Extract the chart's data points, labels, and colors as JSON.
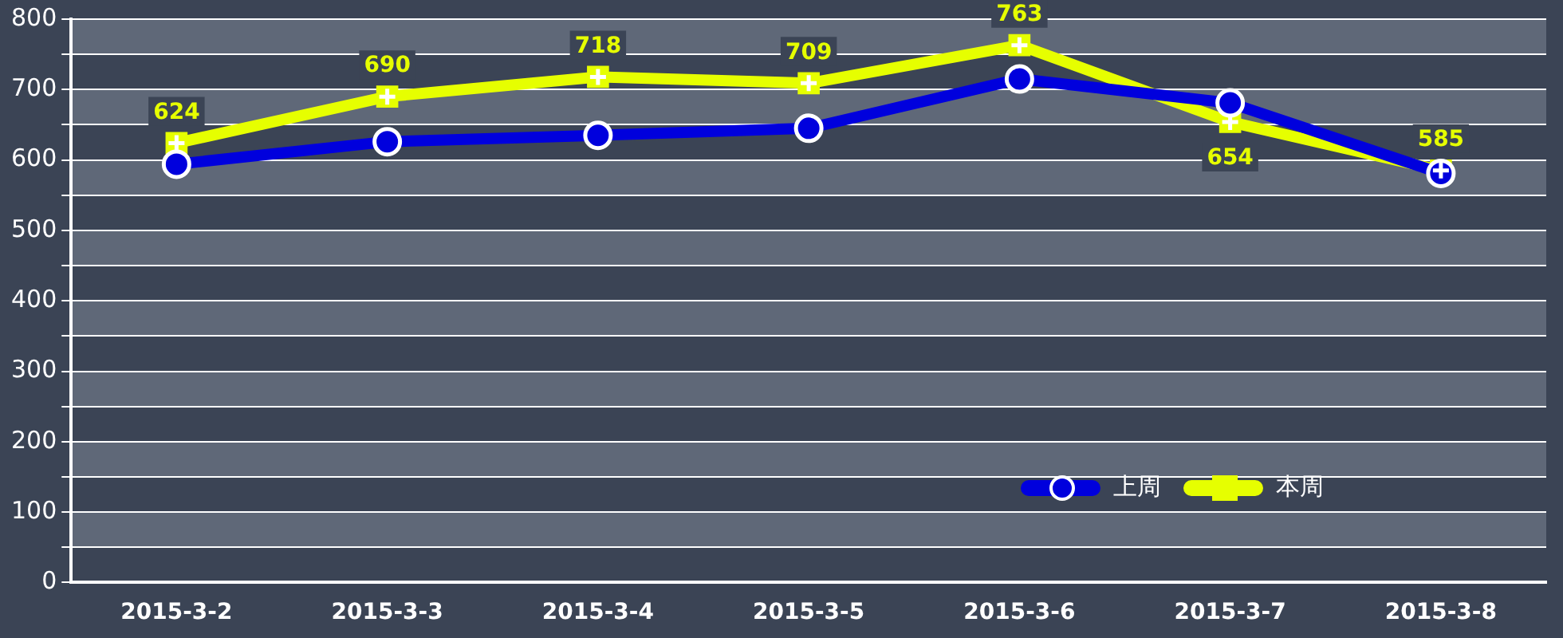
{
  "chart_data": {
    "type": "line",
    "categories": [
      "2015-3-2",
      "2015-3-3",
      "2015-3-4",
      "2015-3-5",
      "2015-3-6",
      "2015-3-7",
      "2015-3-8"
    ],
    "series": [
      {
        "name": "上周",
        "color": "#0000dd",
        "marker": "circle",
        "values": [
          594,
          626,
          635,
          645,
          715,
          681,
          581
        ]
      },
      {
        "name": "本周",
        "color": "#e6ff00",
        "marker": "square",
        "data_labels": true,
        "values": [
          624,
          690,
          718,
          709,
          763,
          654,
          585
        ]
      }
    ],
    "ylim": [
      0,
      800
    ],
    "yticks": [
      0,
      {
        "value": 50,
        "label": null
      },
      100,
      {
        "value": 150,
        "label": null
      },
      200,
      {
        "value": 250,
        "label": null
      },
      300,
      {
        "value": 350,
        "label": null
      },
      400,
      {
        "value": 450,
        "label": null
      },
      500,
      {
        "value": 550,
        "label": null
      },
      600,
      {
        "value": 650,
        "label": null
      },
      700,
      {
        "value": 750,
        "label": null
      },
      800
    ],
    "grid": "y",
    "legend": "bottom right",
    "line_style": "solid"
  }
}
